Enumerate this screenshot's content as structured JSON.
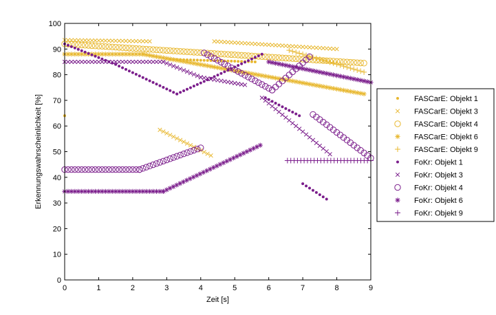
{
  "chart_data": {
    "type": "scatter",
    "title": "",
    "xlabel": "Zeit [s]",
    "ylabel": "Erkennungswahrscheinlichkeit [%]",
    "xlim": [
      0,
      9
    ],
    "ylim": [
      0,
      100
    ],
    "xticks": [
      0,
      1,
      2,
      3,
      4,
      5,
      6,
      7,
      8,
      9
    ],
    "yticks": [
      0,
      10,
      20,
      30,
      40,
      50,
      60,
      70,
      80,
      90,
      100
    ],
    "grid": false,
    "legend_position": "right",
    "colors": {
      "fascare": "#e8b830",
      "fokr": "#7b1e8c"
    },
    "series": [
      {
        "name": "FASCarE: Objekt 1",
        "color": "#e8b830",
        "marker": "dot",
        "segments": [
          {
            "x": [
              0,
              0
            ],
            "y": [
              64,
              64
            ]
          },
          {
            "x": [
              3.1,
              5.6
            ],
            "y": [
              86,
              85
            ]
          }
        ]
      },
      {
        "name": "FASCarE: Objekt 3",
        "color": "#e8b830",
        "marker": "x",
        "segments": [
          {
            "x": [
              0,
              2.5
            ],
            "y": [
              93.5,
              93
            ]
          },
          {
            "x": [
              2.8,
              4.3
            ],
            "y": [
              58.5,
              48.5
            ]
          },
          {
            "x": [
              4.4,
              8.0
            ],
            "y": [
              93,
              90
            ]
          }
        ]
      },
      {
        "name": "FASCarE: Objekt 4",
        "color": "#e8b830",
        "marker": "circle",
        "segments": [
          {
            "x": [
              0,
              8.8
            ],
            "y": [
              92,
              84.5
            ]
          }
        ]
      },
      {
        "name": "FASCarE: Objekt 6",
        "color": "#e8b830",
        "marker": "star",
        "segments": [
          {
            "x": [
              0,
              2.3
            ],
            "y": [
              88,
              88
            ]
          },
          {
            "x": [
              2.3,
              8.8
            ],
            "y": [
              88,
              72.5
            ]
          }
        ]
      },
      {
        "name": "FASCarE: Objekt 9",
        "color": "#e8b830",
        "marker": "plus",
        "segments": [
          {
            "x": [
              6.6,
              8.8
            ],
            "y": [
              89.5,
              81
            ]
          }
        ]
      },
      {
        "name": "FoKr: Objekt 1",
        "color": "#7b1e8c",
        "marker": "dot",
        "segments": [
          {
            "x": [
              0,
              1.5
            ],
            "y": [
              92,
              84
            ]
          },
          {
            "x": [
              1.5,
              3.3
            ],
            "y": [
              84,
              72.5
            ]
          },
          {
            "x": [
              3.3,
              4.2
            ],
            "y": [
              72.5,
              78
            ]
          },
          {
            "x": [
              4.2,
              5.8
            ],
            "y": [
              78,
              88
            ]
          },
          {
            "x": [
              5.9,
              6.9
            ],
            "y": [
              71,
              64
            ]
          },
          {
            "x": [
              7.0,
              7.7
            ],
            "y": [
              37.5,
              31.5
            ]
          }
        ]
      },
      {
        "name": "FoKr: Objekt 3",
        "color": "#7b1e8c",
        "marker": "x",
        "segments": [
          {
            "x": [
              0,
              2.9
            ],
            "y": [
              85,
              85
            ]
          },
          {
            "x": [
              2.9,
              4.0
            ],
            "y": [
              85,
              79
            ]
          },
          {
            "x": [
              4.0,
              5.3
            ],
            "y": [
              79,
              76
            ]
          },
          {
            "x": [
              5.8,
              7.8
            ],
            "y": [
              71,
              49
            ]
          }
        ]
      },
      {
        "name": "FoKr: Objekt 4",
        "color": "#7b1e8c",
        "marker": "circle",
        "segments": [
          {
            "x": [
              0,
              2.2
            ],
            "y": [
              43,
              43
            ]
          },
          {
            "x": [
              2.2,
              4.0
            ],
            "y": [
              43,
              51.5
            ]
          },
          {
            "x": [
              4.1,
              6.1
            ],
            "y": [
              88.5,
              74
            ]
          },
          {
            "x": [
              6.1,
              7.2
            ],
            "y": [
              74,
              87
            ]
          },
          {
            "x": [
              7.3,
              9.0
            ],
            "y": [
              64.5,
              47.5
            ]
          }
        ]
      },
      {
        "name": "FoKr: Objekt 6",
        "color": "#7b1e8c",
        "marker": "star",
        "segments": [
          {
            "x": [
              0,
              2.9
            ],
            "y": [
              34.5,
              34.5
            ]
          },
          {
            "x": [
              2.9,
              5.75
            ],
            "y": [
              34.5,
              52.5
            ]
          },
          {
            "x": [
              6.0,
              9.0
            ],
            "y": [
              85,
              77
            ]
          }
        ]
      },
      {
        "name": "FoKr: Objekt 9",
        "color": "#7b1e8c",
        "marker": "plus",
        "segments": [
          {
            "x": [
              6.55,
              9.0
            ],
            "y": [
              46.5,
              46.5
            ]
          }
        ]
      }
    ]
  }
}
